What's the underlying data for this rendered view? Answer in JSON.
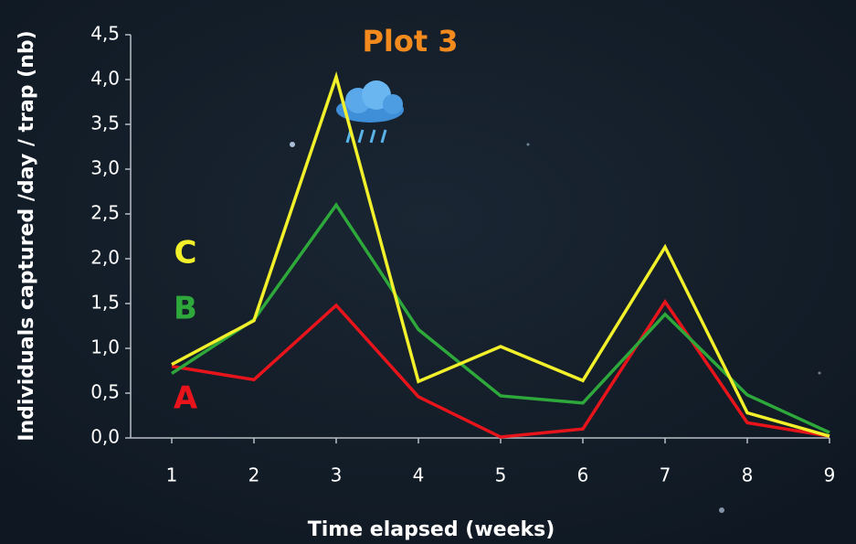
{
  "chart_data": {
    "type": "line",
    "title": "Plot 3",
    "x_label": "Time elapsed (weeks)",
    "y_label": "Individuals captured /day / trap (nb)",
    "x": [
      1,
      2,
      3,
      4,
      5,
      6,
      7,
      8,
      9
    ],
    "xlim": [
      0.5,
      9
    ],
    "xticks": [
      1,
      2,
      3,
      4,
      5,
      6,
      7,
      8,
      9
    ],
    "ylim": [
      0,
      4.5
    ],
    "yticks": [
      {
        "value": 0,
        "label": "0,0"
      },
      {
        "value": 0.5,
        "label": "0,5"
      },
      {
        "value": 1,
        "label": "1,0"
      },
      {
        "value": 1.5,
        "label": "1,5"
      },
      {
        "value": 2,
        "label": "2,0"
      },
      {
        "value": 2.5,
        "label": "2,5"
      },
      {
        "value": 3,
        "label": "3,0"
      },
      {
        "value": 3.5,
        "label": "3,5"
      },
      {
        "value": 4,
        "label": "4,0"
      },
      {
        "value": 4.5,
        "label": "4,5"
      }
    ],
    "series": [
      {
        "name": "A",
        "color": "#e8141b",
        "values": [
          0.8,
          0.65,
          1.48,
          0.46,
          0.01,
          0.1,
          1.52,
          0.17,
          0.02
        ]
      },
      {
        "name": "B",
        "color": "#2ea83a",
        "values": [
          0.72,
          1.32,
          2.6,
          1.21,
          0.47,
          0.39,
          1.38,
          0.48,
          0.06
        ]
      },
      {
        "name": "C",
        "color": "#f2f02a",
        "values": [
          0.82,
          1.31,
          4.03,
          0.63,
          1.02,
          0.64,
          2.13,
          0.28,
          0.02
        ]
      }
    ]
  }
}
